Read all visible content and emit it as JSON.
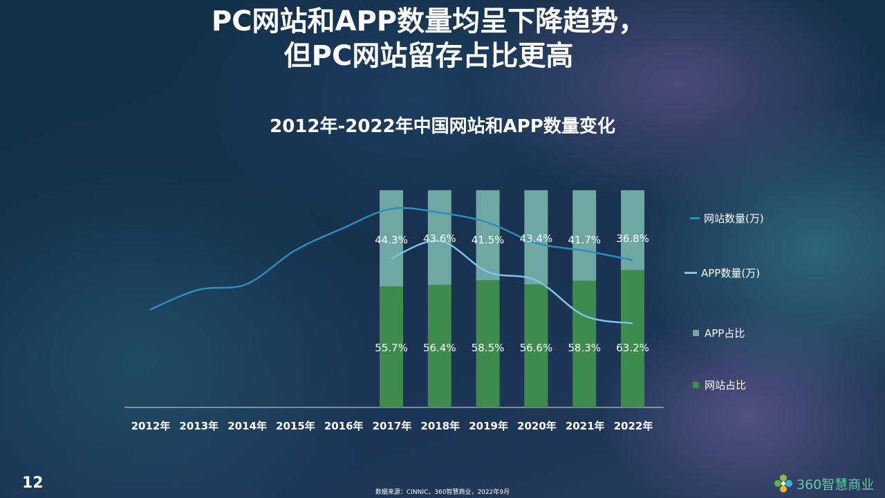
{
  "header": {
    "title_line1": "PC网站和APP数量均呈下降趋势，",
    "title_line2": "但PC网站留存占比更高"
  },
  "chart_data": {
    "type": "bar",
    "title": "2012年-2022年中国网站和APP数量变化",
    "categories": [
      "2012年",
      "2013年",
      "2014年",
      "2015年",
      "2016年",
      "2017年",
      "2018年",
      "2019年",
      "2020年",
      "2021年",
      "2022年"
    ],
    "stacked_share": {
      "categories": [
        "2017年",
        "2018年",
        "2019年",
        "2020年",
        "2021年",
        "2022年"
      ],
      "series": [
        {
          "name": "网站占比",
          "values": [
            55.7,
            56.4,
            58.5,
            56.6,
            58.3,
            63.2
          ],
          "labels": [
            "55.7%",
            "56.4%",
            "58.5%",
            "56.6%",
            "58.3%",
            "63.2%"
          ],
          "color": "#3f8a4f"
        },
        {
          "name": "APP占比",
          "values": [
            44.3,
            43.6,
            41.5,
            43.4,
            41.7,
            36.8
          ],
          "labels": [
            "44.3%",
            "43.6%",
            "41.5%",
            "43.4%",
            "41.7%",
            "36.8%"
          ],
          "color": "#6fa8a2"
        }
      ]
    },
    "lines": [
      {
        "name": "网站数量(万)",
        "color": "#2a8fc0",
        "categories": [
          "2012年",
          "2013年",
          "2014年",
          "2015年",
          "2016年",
          "2017年",
          "2018年",
          "2019年",
          "2020年",
          "2021年",
          "2022年"
        ],
        "values": [
          268,
          320,
          335,
          423,
          482,
          533,
          523,
          497,
          443,
          423,
          398
        ]
      },
      {
        "name": "APP数量(万)",
        "color": "#7cc6ee",
        "categories": [
          "2017年",
          "2018年",
          "2019年",
          "2020年",
          "2021年",
          "2022年"
        ],
        "values": [
          403,
          449,
          367,
          345,
          252,
          232
        ]
      }
    ],
    "legend_position": "right"
  },
  "footer": {
    "page_number": "12",
    "source": "数据来源：CINNIC，360智慧商业，2022年9月",
    "brand": "360智慧商业",
    "brand_color": "#63c9a8"
  }
}
